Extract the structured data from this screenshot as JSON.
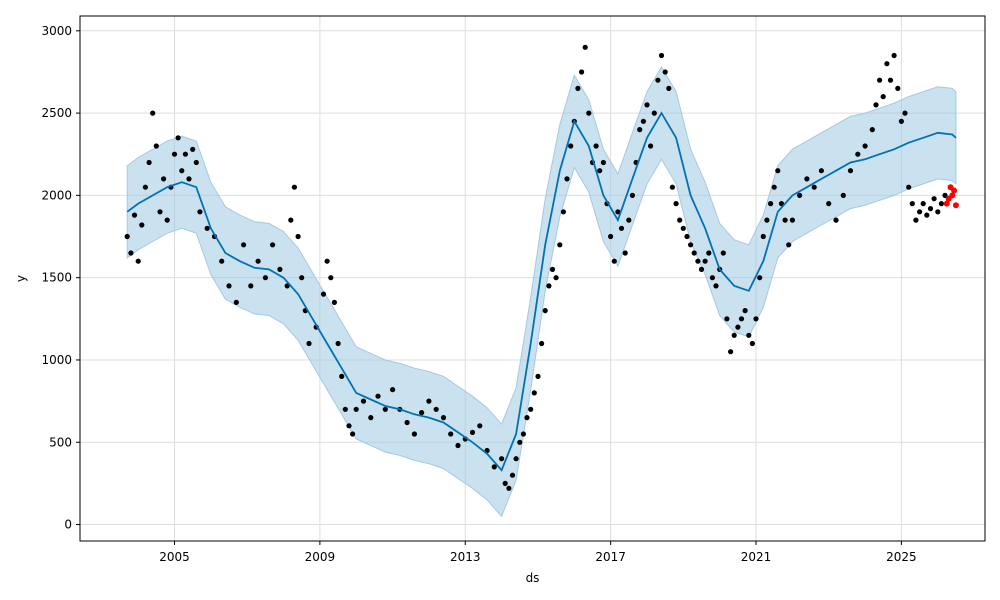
{
  "chart_data": {
    "type": "line",
    "title": "",
    "xlabel": "ds",
    "ylabel": "y",
    "x_ticks": [
      "2005",
      "2009",
      "2013",
      "2017",
      "2021",
      "2025"
    ],
    "y_ticks": [
      0,
      500,
      1000,
      1500,
      2000,
      2500,
      3000
    ],
    "xlim": [
      2002.4,
      2027.3
    ],
    "ylim": [
      -100,
      3090
    ],
    "grid": true,
    "colors": {
      "forecast": "#0072B2",
      "interval": "#9ecae1",
      "observed": "#000000",
      "holdout": "#ff0000"
    },
    "series": [
      {
        "role": "observed_points",
        "points": [
          [
            2003.7,
            1750
          ],
          [
            2003.8,
            1650
          ],
          [
            2003.9,
            1880
          ],
          [
            2004.0,
            1600
          ],
          [
            2004.1,
            1820
          ],
          [
            2004.2,
            2050
          ],
          [
            2004.3,
            2200
          ],
          [
            2004.4,
            2500
          ],
          [
            2004.5,
            2300
          ],
          [
            2004.6,
            1900
          ],
          [
            2004.7,
            2100
          ],
          [
            2004.8,
            1850
          ],
          [
            2004.9,
            2050
          ],
          [
            2005.0,
            2250
          ],
          [
            2005.1,
            2350
          ],
          [
            2005.2,
            2150
          ],
          [
            2005.3,
            2250
          ],
          [
            2005.4,
            2100
          ],
          [
            2005.5,
            2280
          ],
          [
            2005.6,
            2200
          ],
          [
            2005.7,
            1900
          ],
          [
            2005.9,
            1800
          ],
          [
            2006.1,
            1750
          ],
          [
            2006.3,
            1600
          ],
          [
            2006.5,
            1450
          ],
          [
            2006.7,
            1350
          ],
          [
            2006.9,
            1700
          ],
          [
            2007.1,
            1450
          ],
          [
            2007.3,
            1600
          ],
          [
            2007.5,
            1500
          ],
          [
            2007.7,
            1700
          ],
          [
            2007.9,
            1550
          ],
          [
            2008.1,
            1450
          ],
          [
            2008.2,
            1850
          ],
          [
            2008.3,
            2050
          ],
          [
            2008.4,
            1750
          ],
          [
            2008.5,
            1500
          ],
          [
            2008.6,
            1300
          ],
          [
            2008.7,
            1100
          ],
          [
            2008.9,
            1200
          ],
          [
            2009.1,
            1400
          ],
          [
            2009.2,
            1600
          ],
          [
            2009.3,
            1500
          ],
          [
            2009.4,
            1350
          ],
          [
            2009.5,
            1100
          ],
          [
            2009.6,
            900
          ],
          [
            2009.7,
            700
          ],
          [
            2009.8,
            600
          ],
          [
            2009.9,
            550
          ],
          [
            2010.0,
            700
          ],
          [
            2010.2,
            750
          ],
          [
            2010.4,
            650
          ],
          [
            2010.6,
            780
          ],
          [
            2010.8,
            700
          ],
          [
            2011.0,
            820
          ],
          [
            2011.2,
            700
          ],
          [
            2011.4,
            620
          ],
          [
            2011.6,
            550
          ],
          [
            2011.8,
            680
          ],
          [
            2012.0,
            750
          ],
          [
            2012.2,
            700
          ],
          [
            2012.4,
            650
          ],
          [
            2012.6,
            550
          ],
          [
            2012.8,
            480
          ],
          [
            2013.0,
            520
          ],
          [
            2013.2,
            560
          ],
          [
            2013.4,
            600
          ],
          [
            2013.6,
            450
          ],
          [
            2013.8,
            350
          ],
          [
            2014.0,
            400
          ],
          [
            2014.1,
            250
          ],
          [
            2014.2,
            220
          ],
          [
            2014.3,
            300
          ],
          [
            2014.4,
            400
          ],
          [
            2014.5,
            500
          ],
          [
            2014.6,
            550
          ],
          [
            2014.7,
            650
          ],
          [
            2014.8,
            700
          ],
          [
            2014.9,
            800
          ],
          [
            2015.0,
            900
          ],
          [
            2015.1,
            1100
          ],
          [
            2015.2,
            1300
          ],
          [
            2015.3,
            1450
          ],
          [
            2015.4,
            1550
          ],
          [
            2015.5,
            1500
          ],
          [
            2015.6,
            1700
          ],
          [
            2015.7,
            1900
          ],
          [
            2015.8,
            2100
          ],
          [
            2015.9,
            2300
          ],
          [
            2016.0,
            2450
          ],
          [
            2016.1,
            2650
          ],
          [
            2016.2,
            2750
          ],
          [
            2016.3,
            2900
          ],
          [
            2016.4,
            2500
          ],
          [
            2016.5,
            2200
          ],
          [
            2016.6,
            2300
          ],
          [
            2016.7,
            2150
          ],
          [
            2016.8,
            2200
          ],
          [
            2016.9,
            1950
          ],
          [
            2017.0,
            1750
          ],
          [
            2017.1,
            1600
          ],
          [
            2017.2,
            1900
          ],
          [
            2017.3,
            1800
          ],
          [
            2017.4,
            1650
          ],
          [
            2017.5,
            1850
          ],
          [
            2017.6,
            2000
          ],
          [
            2017.7,
            2200
          ],
          [
            2017.8,
            2400
          ],
          [
            2017.9,
            2450
          ],
          [
            2018.0,
            2550
          ],
          [
            2018.1,
            2300
          ],
          [
            2018.2,
            2500
          ],
          [
            2018.3,
            2700
          ],
          [
            2018.4,
            2850
          ],
          [
            2018.5,
            2750
          ],
          [
            2018.6,
            2650
          ],
          [
            2018.7,
            2050
          ],
          [
            2018.8,
            1950
          ],
          [
            2018.9,
            1850
          ],
          [
            2019.0,
            1800
          ],
          [
            2019.1,
            1750
          ],
          [
            2019.2,
            1700
          ],
          [
            2019.3,
            1650
          ],
          [
            2019.4,
            1600
          ],
          [
            2019.5,
            1550
          ],
          [
            2019.6,
            1600
          ],
          [
            2019.7,
            1650
          ],
          [
            2019.8,
            1500
          ],
          [
            2019.9,
            1450
          ],
          [
            2020.0,
            1550
          ],
          [
            2020.1,
            1650
          ],
          [
            2020.2,
            1250
          ],
          [
            2020.3,
            1050
          ],
          [
            2020.4,
            1150
          ],
          [
            2020.5,
            1200
          ],
          [
            2020.6,
            1250
          ],
          [
            2020.7,
            1300
          ],
          [
            2020.8,
            1150
          ],
          [
            2020.9,
            1100
          ],
          [
            2021.0,
            1250
          ],
          [
            2021.1,
            1500
          ],
          [
            2021.2,
            1750
          ],
          [
            2021.3,
            1850
          ],
          [
            2021.4,
            1950
          ],
          [
            2021.5,
            2050
          ],
          [
            2021.6,
            2150
          ],
          [
            2021.7,
            1950
          ],
          [
            2021.8,
            1850
          ],
          [
            2021.9,
            1700
          ],
          [
            2022.0,
            1850
          ],
          [
            2022.2,
            2000
          ],
          [
            2022.4,
            2100
          ],
          [
            2022.6,
            2050
          ],
          [
            2022.8,
            2150
          ],
          [
            2023.0,
            1950
          ],
          [
            2023.2,
            1850
          ],
          [
            2023.4,
            2000
          ],
          [
            2023.6,
            2150
          ],
          [
            2023.8,
            2250
          ],
          [
            2024.0,
            2300
          ],
          [
            2024.2,
            2400
          ],
          [
            2024.3,
            2550
          ],
          [
            2024.4,
            2700
          ],
          [
            2024.5,
            2600
          ],
          [
            2024.6,
            2800
          ],
          [
            2024.7,
            2700
          ],
          [
            2024.8,
            2850
          ],
          [
            2024.9,
            2650
          ],
          [
            2025.0,
            2450
          ],
          [
            2025.1,
            2500
          ],
          [
            2025.2,
            2050
          ],
          [
            2025.3,
            1950
          ],
          [
            2025.4,
            1850
          ],
          [
            2025.5,
            1900
          ],
          [
            2025.6,
            1950
          ],
          [
            2025.7,
            1880
          ],
          [
            2025.8,
            1920
          ],
          [
            2025.9,
            1980
          ],
          [
            2026.0,
            1900
          ],
          [
            2026.1,
            1950
          ],
          [
            2026.2,
            2000
          ]
        ]
      },
      {
        "role": "holdout_points",
        "points": [
          [
            2026.25,
            1950
          ],
          [
            2026.3,
            1980
          ],
          [
            2026.35,
            2050
          ],
          [
            2026.4,
            2000
          ],
          [
            2026.45,
            2030
          ],
          [
            2026.5,
            1940
          ]
        ]
      },
      {
        "role": "forecast_line",
        "x": [
          2003.7,
          2004.0,
          2004.4,
          2004.8,
          2005.2,
          2005.6,
          2006.0,
          2006.4,
          2006.8,
          2007.2,
          2007.6,
          2008.0,
          2008.4,
          2008.8,
          2009.2,
          2009.6,
          2010.0,
          2010.4,
          2010.8,
          2011.2,
          2011.6,
          2012.0,
          2012.4,
          2012.8,
          2013.2,
          2013.6,
          2014.0,
          2014.4,
          2014.8,
          2015.2,
          2015.6,
          2016.0,
          2016.4,
          2016.8,
          2017.2,
          2017.6,
          2018.0,
          2018.4,
          2018.8,
          2019.2,
          2019.6,
          2020.0,
          2020.4,
          2020.8,
          2021.2,
          2021.6,
          2022.0,
          2022.4,
          2022.8,
          2023.2,
          2023.6,
          2024.0,
          2024.4,
          2024.8,
          2025.2,
          2025.6,
          2026.0,
          2026.4,
          2026.5
        ],
        "y": [
          1900,
          1950,
          2000,
          2050,
          2080,
          2050,
          1800,
          1650,
          1600,
          1560,
          1550,
          1500,
          1400,
          1250,
          1100,
          950,
          800,
          760,
          720,
          700,
          670,
          650,
          620,
          560,
          500,
          430,
          330,
          550,
          1100,
          1700,
          2150,
          2450,
          2300,
          2000,
          1850,
          2100,
          2350,
          2500,
          2350,
          2000,
          1800,
          1550,
          1450,
          1420,
          1600,
          1900,
          2000,
          2050,
          2100,
          2150,
          2200,
          2220,
          2250,
          2280,
          2320,
          2350,
          2380,
          2370,
          2350
        ]
      }
    ],
    "interval_halfwidth": 280
  }
}
